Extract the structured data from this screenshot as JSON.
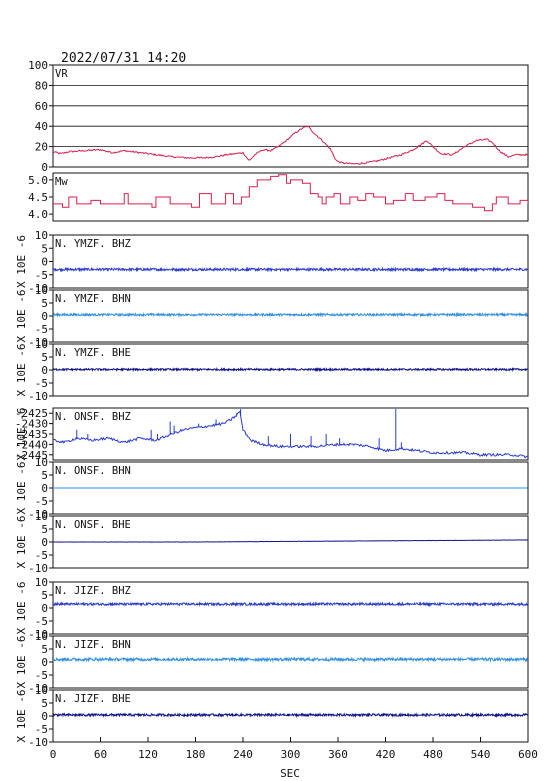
{
  "header": {
    "datetime": "2022/07/31  14:20"
  },
  "chart_data": {
    "type": "line",
    "xlabel": "SEC",
    "x_range": [
      0,
      600
    ],
    "x_ticks": [
      0,
      60,
      120,
      180,
      240,
      300,
      360,
      420,
      480,
      540,
      600
    ],
    "colors": {
      "red": "#d6204a",
      "navy": "#11118a",
      "blue": "#2a3bd0",
      "light": "#2f8fe0"
    },
    "panels": [
      {
        "id": "vr",
        "title": "VR",
        "ylim": [
          0,
          100
        ],
        "yticks": [
          0,
          20,
          40,
          60,
          80,
          100
        ],
        "grid": true,
        "color": "#d6204a",
        "series_type": "polyline",
        "points": [
          [
            0,
            15
          ],
          [
            10,
            13
          ],
          [
            20,
            15
          ],
          [
            40,
            16
          ],
          [
            60,
            17
          ],
          [
            75,
            14
          ],
          [
            90,
            16
          ],
          [
            110,
            14
          ],
          [
            130,
            12
          ],
          [
            150,
            10
          ],
          [
            170,
            9
          ],
          [
            190,
            9
          ],
          [
            205,
            10
          ],
          [
            220,
            12
          ],
          [
            240,
            14
          ],
          [
            248,
            6
          ],
          [
            255,
            12
          ],
          [
            265,
            17
          ],
          [
            275,
            16
          ],
          [
            285,
            20
          ],
          [
            295,
            26
          ],
          [
            305,
            33
          ],
          [
            315,
            38
          ],
          [
            322,
            40
          ],
          [
            330,
            33
          ],
          [
            340,
            26
          ],
          [
            350,
            18
          ],
          [
            358,
            6
          ],
          [
            365,
            4
          ],
          [
            380,
            3
          ],
          [
            395,
            4
          ],
          [
            410,
            6
          ],
          [
            425,
            9
          ],
          [
            440,
            12
          ],
          [
            455,
            17
          ],
          [
            465,
            22
          ],
          [
            472,
            26
          ],
          [
            480,
            20
          ],
          [
            490,
            13
          ],
          [
            505,
            12
          ],
          [
            520,
            20
          ],
          [
            535,
            26
          ],
          [
            548,
            27
          ],
          [
            555,
            24
          ],
          [
            565,
            15
          ],
          [
            575,
            10
          ],
          [
            585,
            12
          ],
          [
            600,
            12
          ]
        ],
        "noise": 0.8
      },
      {
        "id": "mw",
        "title": "Mw",
        "ylim": [
          3.8,
          5.2
        ],
        "yticks": [
          4.0,
          4.5,
          5.0
        ],
        "grid": false,
        "color": "#d6204a",
        "series_type": "steps",
        "points": [
          [
            0,
            4.3
          ],
          [
            12,
            4.2
          ],
          [
            20,
            4.5
          ],
          [
            30,
            4.3
          ],
          [
            48,
            4.4
          ],
          [
            60,
            4.3
          ],
          [
            90,
            4.6
          ],
          [
            95,
            4.3
          ],
          [
            125,
            4.2
          ],
          [
            130,
            4.5
          ],
          [
            140,
            4.5
          ],
          [
            148,
            4.3
          ],
          [
            175,
            4.2
          ],
          [
            185,
            4.6
          ],
          [
            200,
            4.3
          ],
          [
            218,
            4.6
          ],
          [
            228,
            4.3
          ],
          [
            238,
            4.5
          ],
          [
            248,
            4.8
          ],
          [
            258,
            5.0
          ],
          [
            265,
            5.0
          ],
          [
            275,
            5.1
          ],
          [
            285,
            5.15
          ],
          [
            295,
            4.9
          ],
          [
            300,
            5.0
          ],
          [
            315,
            4.9
          ],
          [
            325,
            4.6
          ],
          [
            335,
            4.5
          ],
          [
            340,
            4.3
          ],
          [
            345,
            4.5
          ],
          [
            355,
            4.6
          ],
          [
            363,
            4.3
          ],
          [
            375,
            4.5
          ],
          [
            385,
            4.4
          ],
          [
            395,
            4.6
          ],
          [
            405,
            4.5
          ],
          [
            420,
            4.3
          ],
          [
            430,
            4.4
          ],
          [
            445,
            4.6
          ],
          [
            455,
            4.4
          ],
          [
            470,
            4.5
          ],
          [
            485,
            4.6
          ],
          [
            495,
            4.4
          ],
          [
            505,
            4.3
          ],
          [
            520,
            4.3
          ],
          [
            530,
            4.2
          ],
          [
            545,
            4.1
          ],
          [
            555,
            4.3
          ],
          [
            560,
            4.5
          ],
          [
            575,
            4.3
          ],
          [
            590,
            4.4
          ],
          [
            600,
            4.3
          ]
        ],
        "noise": 0.0
      },
      {
        "id": "ymzf-bhz",
        "title": "N. YMZF. BHZ",
        "ylabel": "X 10E -6",
        "ylim": [
          -10,
          10
        ],
        "yticks": [
          -10,
          -5,
          0,
          5,
          10
        ],
        "grid": false,
        "color": "#2a3bd0",
        "series_type": "noise",
        "base": -3.0,
        "noise": 0.45
      },
      {
        "id": "ymzf-bhn",
        "title": "N. YMZF. BHN",
        "ylabel": "X 10E -6",
        "ylim": [
          -10,
          10
        ],
        "yticks": [
          -10,
          -5,
          0,
          5,
          10
        ],
        "grid": false,
        "color": "#2f8fe0",
        "series_type": "noise",
        "base": 0.5,
        "noise": 0.4
      },
      {
        "id": "ymzf-bhe",
        "title": "N. YMZF. BHE",
        "ylabel": "X 10E -6",
        "ylim": [
          -10,
          10
        ],
        "yticks": [
          -10,
          -5,
          0,
          5,
          10
        ],
        "grid": false,
        "color": "#11118a",
        "series_type": "noise",
        "base": 0.2,
        "noise": 0.35
      },
      {
        "id": "onsf-bhz",
        "title": "N. ONSF. BHZ",
        "ylabel": "X 10E -6",
        "ylim": [
          -2447.5,
          -2422.5
        ],
        "yticks": [
          -2445,
          -2440,
          -2435,
          -2430,
          -2425
        ],
        "grid": false,
        "color": "#2a3bd0",
        "series_type": "polyline",
        "points": [
          [
            0,
            -2438
          ],
          [
            15,
            -2439
          ],
          [
            30,
            -2437
          ],
          [
            50,
            -2438
          ],
          [
            70,
            -2437
          ],
          [
            90,
            -2439
          ],
          [
            110,
            -2437
          ],
          [
            130,
            -2438
          ],
          [
            150,
            -2435
          ],
          [
            165,
            -2433
          ],
          [
            180,
            -2432
          ],
          [
            200,
            -2431
          ],
          [
            215,
            -2430
          ],
          [
            225,
            -2428
          ],
          [
            232,
            -2426
          ],
          [
            236,
            -2424
          ],
          [
            240,
            -2433
          ],
          [
            250,
            -2438
          ],
          [
            265,
            -2440
          ],
          [
            285,
            -2441
          ],
          [
            310,
            -2441
          ],
          [
            330,
            -2441
          ],
          [
            360,
            -2440
          ],
          [
            380,
            -2440
          ],
          [
            400,
            -2441
          ],
          [
            420,
            -2443
          ],
          [
            440,
            -2442
          ],
          [
            460,
            -2443
          ],
          [
            480,
            -2444
          ],
          [
            500,
            -2444
          ],
          [
            520,
            -2444
          ],
          [
            540,
            -2445
          ],
          [
            560,
            -2445
          ],
          [
            580,
            -2445
          ],
          [
            600,
            -2446
          ]
        ],
        "spikes": [
          [
            30,
            -2433
          ],
          [
            44,
            -2435
          ],
          [
            124,
            -2433
          ],
          [
            132,
            -2435
          ],
          [
            148,
            -2429
          ],
          [
            153,
            -2431
          ],
          [
            184,
            -2430
          ],
          [
            206,
            -2428
          ],
          [
            232,
            -2425
          ],
          [
            237,
            -2423
          ],
          [
            272,
            -2436
          ],
          [
            300,
            -2435
          ],
          [
            326,
            -2436
          ],
          [
            345,
            -2435
          ],
          [
            362,
            -2437
          ],
          [
            412,
            -2437
          ],
          [
            433,
            -2423
          ],
          [
            440,
            -2439
          ]
        ],
        "noise": 0.6
      },
      {
        "id": "onsf-bhn",
        "title": "N. ONSF. BHN",
        "ylabel": "X 10E -6",
        "ylim": [
          -10,
          10
        ],
        "yticks": [
          -10,
          -5,
          0,
          5,
          10
        ],
        "grid": false,
        "color": "#2f8fe0",
        "series_type": "noise",
        "base": 0.0,
        "noise": 0.02
      },
      {
        "id": "onsf-bhe",
        "title": "N. ONSF. BHE",
        "ylabel": "X 10E -6",
        "ylim": [
          -10,
          10
        ],
        "yticks": [
          -10,
          -5,
          0,
          5,
          10
        ],
        "grid": false,
        "color": "#11118a",
        "series_type": "drift",
        "base": 0.0,
        "drift_start": 180,
        "drift_end": 600,
        "drift_to": 0.8,
        "noise": 0.05
      },
      {
        "id": "jizf-bhz",
        "title": "N. JIZF. BHZ",
        "ylabel": "X 10E -6",
        "ylim": [
          -10,
          10
        ],
        "yticks": [
          -10,
          -5,
          0,
          5,
          10
        ],
        "grid": false,
        "color": "#2a3bd0",
        "series_type": "noise",
        "base": 1.5,
        "noise": 0.45
      },
      {
        "id": "jizf-bhn",
        "title": "N. JIZF. BHN",
        "ylabel": "X 10E -6",
        "ylim": [
          -10,
          10
        ],
        "yticks": [
          -10,
          -5,
          0,
          5,
          10
        ],
        "grid": false,
        "color": "#2f8fe0",
        "series_type": "noise",
        "base": 1.0,
        "noise": 0.55
      },
      {
        "id": "jizf-bhe",
        "title": "N. JIZF. BHE",
        "ylabel": "X 10E -6",
        "ylim": [
          -10,
          10
        ],
        "yticks": [
          -10,
          -5,
          0,
          5,
          10
        ],
        "grid": false,
        "color": "#11118a",
        "series_type": "noise",
        "base": 0.4,
        "noise": 0.45
      }
    ]
  }
}
